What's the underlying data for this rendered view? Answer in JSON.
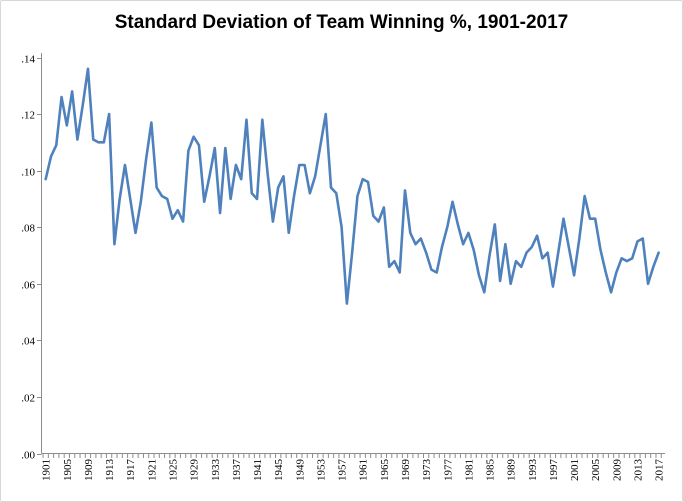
{
  "chart_data": {
    "type": "line",
    "title": "Standard Deviation of Team Winning %, 1901-2017",
    "xlabel": "",
    "ylabel": "",
    "ylim": [
      0,
      0.14
    ],
    "grid": false,
    "legend": false,
    "line_color": "#4F81BD",
    "axis_color": "#8C8C8C",
    "text_color": "#000000",
    "y_ticks": [
      0.0,
      0.02,
      0.04,
      0.06,
      0.08,
      0.1,
      0.12,
      0.14
    ],
    "y_tick_labels": [
      ".00",
      ".02",
      ".04",
      ".06",
      ".08",
      ".10",
      ".12",
      ".14"
    ],
    "x_tick_labels": [
      "1901",
      "1905",
      "1909",
      "1913",
      "1917",
      "1921",
      "1925",
      "1929",
      "1933",
      "1937",
      "1941",
      "1945",
      "1949",
      "1953",
      "1957",
      "1961",
      "1965",
      "1969",
      "1973",
      "1977",
      "1981",
      "1985",
      "1989",
      "1993",
      "1997",
      "2001",
      "2005",
      "2009",
      "2013",
      "2017"
    ],
    "years": [
      1901,
      1902,
      1903,
      1904,
      1905,
      1906,
      1907,
      1908,
      1909,
      1910,
      1911,
      1912,
      1913,
      1914,
      1915,
      1916,
      1917,
      1918,
      1919,
      1920,
      1921,
      1922,
      1923,
      1924,
      1925,
      1926,
      1927,
      1928,
      1929,
      1930,
      1931,
      1932,
      1933,
      1934,
      1935,
      1936,
      1937,
      1938,
      1939,
      1940,
      1941,
      1942,
      1943,
      1944,
      1945,
      1946,
      1947,
      1948,
      1949,
      1950,
      1951,
      1952,
      1953,
      1954,
      1955,
      1956,
      1957,
      1958,
      1959,
      1960,
      1961,
      1962,
      1963,
      1964,
      1965,
      1966,
      1967,
      1968,
      1969,
      1970,
      1971,
      1972,
      1973,
      1974,
      1975,
      1976,
      1977,
      1978,
      1979,
      1980,
      1981,
      1982,
      1983,
      1984,
      1985,
      1986,
      1987,
      1988,
      1989,
      1990,
      1991,
      1992,
      1993,
      1994,
      1995,
      1996,
      1997,
      1998,
      1999,
      2000,
      2001,
      2002,
      2003,
      2004,
      2005,
      2006,
      2007,
      2008,
      2009,
      2010,
      2011,
      2012,
      2013,
      2014,
      2015,
      2016,
      2017
    ],
    "values": [
      0.097,
      0.105,
      0.109,
      0.126,
      0.116,
      0.128,
      0.111,
      0.123,
      0.136,
      0.111,
      0.11,
      0.11,
      0.12,
      0.074,
      0.09,
      0.102,
      0.09,
      0.078,
      0.089,
      0.104,
      0.117,
      0.094,
      0.091,
      0.09,
      0.083,
      0.086,
      0.082,
      0.107,
      0.112,
      0.109,
      0.089,
      0.098,
      0.108,
      0.085,
      0.108,
      0.09,
      0.102,
      0.097,
      0.118,
      0.092,
      0.09,
      0.118,
      0.099,
      0.082,
      0.094,
      0.098,
      0.078,
      0.091,
      0.102,
      0.102,
      0.092,
      0.098,
      0.109,
      0.12,
      0.094,
      0.092,
      0.08,
      0.053,
      0.071,
      0.091,
      0.097,
      0.096,
      0.084,
      0.082,
      0.087,
      0.066,
      0.068,
      0.064,
      0.093,
      0.078,
      0.074,
      0.076,
      0.071,
      0.065,
      0.064,
      0.073,
      0.08,
      0.089,
      0.081,
      0.074,
      0.078,
      0.072,
      0.063,
      0.057,
      0.07,
      0.081,
      0.061,
      0.074,
      0.06,
      0.068,
      0.066,
      0.071,
      0.073,
      0.077,
      0.069,
      0.071,
      0.059,
      0.071,
      0.083,
      0.073,
      0.063,
      0.076,
      0.091,
      0.083,
      0.083,
      0.072,
      0.064,
      0.057,
      0.064,
      0.069,
      0.068,
      0.069,
      0.075,
      0.076,
      0.06,
      0.066,
      0.071
    ]
  }
}
